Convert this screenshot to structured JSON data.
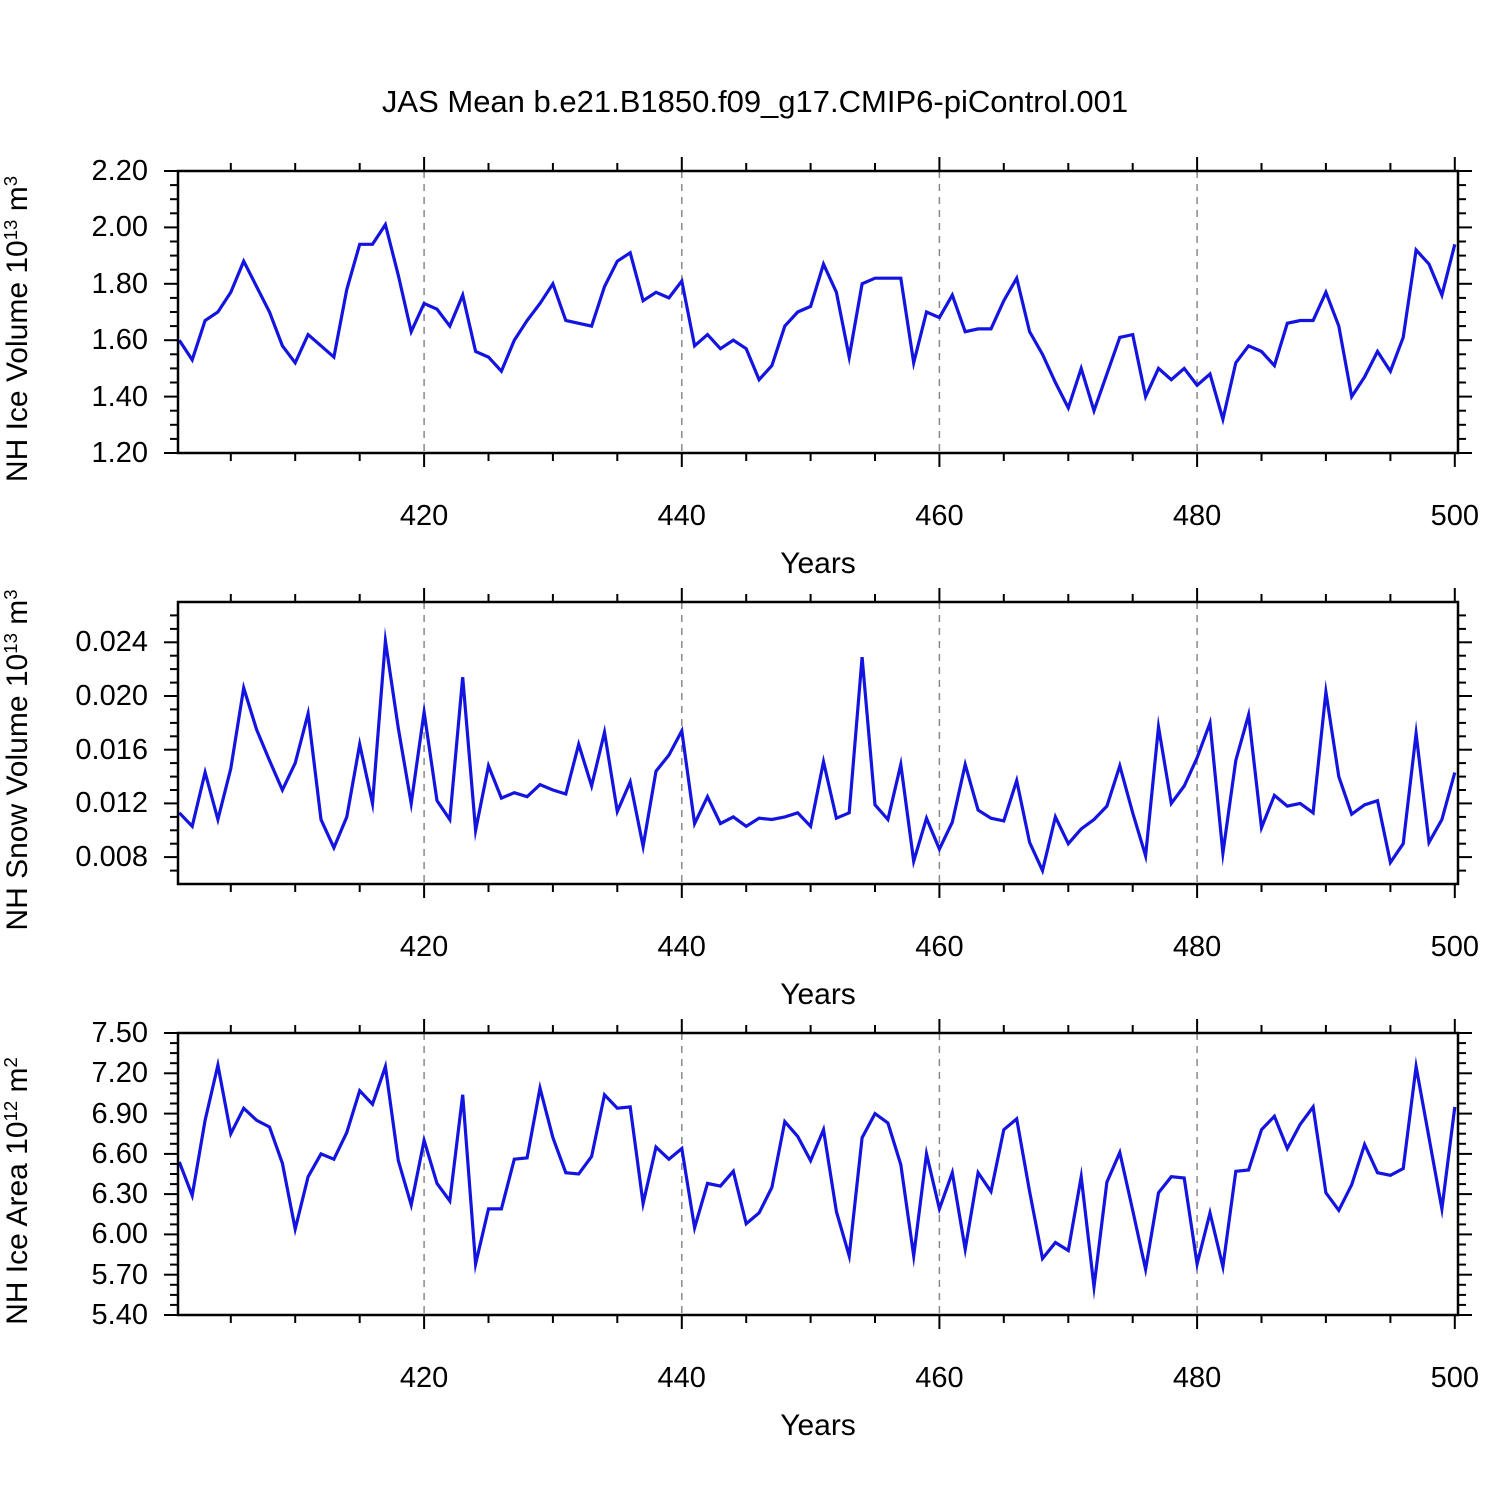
{
  "title": "JAS Mean b.e21.B1850.f09_g17.CMIP6-piControl.001",
  "colors": {
    "line": "#1414e0",
    "axis": "#000000",
    "grid": "#888888",
    "background": "#ffffff"
  },
  "chart_data": [
    {
      "type": "line",
      "ylabel": "NH Ice Volume 10^13 m^3",
      "ylabel_parts": [
        {
          "t": "NH Ice Volume 10"
        },
        {
          "t": "13",
          "sup": true
        },
        {
          "t": " m"
        },
        {
          "t": "3",
          "sup": true
        }
      ],
      "xlabel": "Years",
      "xlim": [
        400.9,
        500.25
      ],
      "ylim": [
        1.2,
        2.2
      ],
      "yticks": [
        1.2,
        1.4,
        1.6,
        1.8,
        2.0,
        2.2
      ],
      "ytick_labels": [
        "1.20",
        "1.40",
        "1.60",
        "1.80",
        "2.00",
        "2.20"
      ],
      "yminor_step": 0.05,
      "xticks": [
        420,
        440,
        460,
        480,
        500
      ],
      "xtick_labels": [
        "420",
        "440",
        "460",
        "480",
        "500"
      ],
      "xminor_step": 5,
      "grid_x": [
        420,
        440,
        460,
        480
      ],
      "legend": "none",
      "grid": "dashed-vertical-only",
      "x": {
        "start": 401,
        "step": 1
      },
      "values": [
        1.6,
        1.53,
        1.67,
        1.7,
        1.77,
        1.88,
        1.79,
        1.7,
        1.58,
        1.52,
        1.62,
        1.58,
        1.54,
        1.78,
        1.94,
        1.94,
        2.01,
        1.83,
        1.63,
        1.73,
        1.71,
        1.65,
        1.76,
        1.56,
        1.54,
        1.49,
        1.6,
        1.67,
        1.73,
        1.8,
        1.67,
        1.66,
        1.65,
        1.79,
        1.88,
        1.91,
        1.74,
        1.77,
        1.75,
        1.81,
        1.58,
        1.62,
        1.57,
        1.6,
        1.57,
        1.46,
        1.51,
        1.65,
        1.7,
        1.72,
        1.87,
        1.77,
        1.54,
        1.8,
        1.82,
        1.82,
        1.82,
        1.52,
        1.7,
        1.68,
        1.76,
        1.63,
        1.64,
        1.64,
        1.74,
        1.82,
        1.63,
        1.55,
        1.45,
        1.36,
        1.5,
        1.35,
        1.48,
        1.61,
        1.62,
        1.4,
        1.5,
        1.46,
        1.5,
        1.44,
        1.48,
        1.32,
        1.52,
        1.58,
        1.56,
        1.51,
        1.66,
        1.67,
        1.67,
        1.77,
        1.65,
        1.4,
        1.47,
        1.56,
        1.49,
        1.61,
        1.92,
        1.87,
        1.76,
        1.94
      ]
    },
    {
      "type": "line",
      "ylabel": "NH Snow Volume 10^13 m^3",
      "ylabel_parts": [
        {
          "t": "NH Snow Volume 10"
        },
        {
          "t": "13",
          "sup": true
        },
        {
          "t": " m"
        },
        {
          "t": "3",
          "sup": true
        }
      ],
      "xlabel": "Years",
      "xlim": [
        400.9,
        500.25
      ],
      "ylim": [
        0.006,
        0.027
      ],
      "yticks": [
        0.008,
        0.012,
        0.016,
        0.02,
        0.024
      ],
      "ytick_labels": [
        "0.008",
        "0.012",
        "0.016",
        "0.020",
        "0.024"
      ],
      "yminor_step": 0.001,
      "xticks": [
        420,
        440,
        460,
        480,
        500
      ],
      "xtick_labels": [
        "420",
        "440",
        "460",
        "480",
        "500"
      ],
      "xminor_step": 5,
      "grid_x": [
        420,
        440,
        460,
        480
      ],
      "legend": "none",
      "grid": "dashed-vertical-only",
      "x": {
        "start": 401,
        "step": 1
      },
      "values": [
        0.0113,
        0.0103,
        0.0143,
        0.0108,
        0.0146,
        0.0206,
        0.0175,
        0.0152,
        0.013,
        0.015,
        0.0187,
        0.0108,
        0.0087,
        0.011,
        0.0164,
        0.012,
        0.0241,
        0.0176,
        0.012,
        0.0188,
        0.0122,
        0.0108,
        0.0214,
        0.01,
        0.0148,
        0.0124,
        0.0128,
        0.0125,
        0.0134,
        0.013,
        0.0127,
        0.0164,
        0.0133,
        0.0173,
        0.0114,
        0.0136,
        0.0088,
        0.0144,
        0.0156,
        0.0174,
        0.0105,
        0.0125,
        0.0105,
        0.011,
        0.0103,
        0.0109,
        0.0108,
        0.011,
        0.0113,
        0.0103,
        0.0151,
        0.0109,
        0.0113,
        0.0229,
        0.0119,
        0.0108,
        0.0149,
        0.0077,
        0.0109,
        0.0086,
        0.0106,
        0.0149,
        0.0115,
        0.0109,
        0.0107,
        0.0137,
        0.0091,
        0.007,
        0.011,
        0.009,
        0.0101,
        0.0108,
        0.0118,
        0.0148,
        0.0113,
        0.0081,
        0.0177,
        0.012,
        0.0133,
        0.0154,
        0.018,
        0.0083,
        0.0152,
        0.0186,
        0.0102,
        0.0126,
        0.0118,
        0.012,
        0.0113,
        0.0203,
        0.014,
        0.0112,
        0.0119,
        0.0122,
        0.0076,
        0.009,
        0.0172,
        0.0091,
        0.0108,
        0.0143
      ]
    },
    {
      "type": "line",
      "ylabel": "NH Ice Area 10^12 m^2",
      "ylabel_parts": [
        {
          "t": "NH Ice Area 10"
        },
        {
          "t": "12",
          "sup": true
        },
        {
          "t": " m"
        },
        {
          "t": "2",
          "sup": true
        }
      ],
      "xlabel": "Years",
      "xlim": [
        400.9,
        500.25
      ],
      "ylim": [
        5.4,
        7.5
      ],
      "yticks": [
        5.4,
        5.7,
        6.0,
        6.3,
        6.6,
        6.9,
        7.2,
        7.5
      ],
      "ytick_labels": [
        "5.40",
        "5.70",
        "6.00",
        "6.30",
        "6.60",
        "6.90",
        "7.20",
        "7.50"
      ],
      "yminor_step": 0.075,
      "xticks": [
        420,
        440,
        460,
        480,
        500
      ],
      "xtick_labels": [
        "420",
        "440",
        "460",
        "480",
        "500"
      ],
      "xminor_step": 5,
      "grid_x": [
        420,
        440,
        460,
        480
      ],
      "legend": "none",
      "grid": "dashed-vertical-only",
      "x": {
        "start": 401,
        "step": 1
      },
      "values": [
        6.54,
        6.29,
        6.85,
        7.26,
        6.75,
        6.94,
        6.85,
        6.8,
        6.53,
        6.04,
        6.43,
        6.6,
        6.56,
        6.76,
        7.07,
        6.97,
        7.25,
        6.55,
        6.22,
        6.7,
        6.38,
        6.25,
        7.04,
        5.78,
        6.19,
        6.19,
        6.56,
        6.57,
        7.09,
        6.72,
        6.46,
        6.45,
        6.58,
        7.04,
        6.94,
        6.95,
        6.23,
        6.65,
        6.56,
        6.64,
        6.05,
        6.38,
        6.36,
        6.47,
        6.08,
        6.16,
        6.35,
        6.84,
        6.73,
        6.55,
        6.78,
        6.17,
        5.84,
        6.72,
        6.9,
        6.83,
        6.52,
        5.84,
        6.6,
        6.19,
        6.46,
        5.89,
        6.46,
        6.32,
        6.78,
        6.86,
        6.32,
        5.82,
        5.94,
        5.88,
        6.43,
        5.61,
        6.39,
        6.61,
        6.18,
        5.74,
        6.31,
        6.43,
        6.42,
        5.78,
        6.16,
        5.76,
        6.47,
        6.48,
        6.78,
        6.88,
        6.64,
        6.82,
        6.95,
        6.31,
        6.18,
        6.37,
        6.67,
        6.46,
        6.44,
        6.49,
        7.25,
        6.72,
        6.19,
        6.95
      ]
    }
  ]
}
